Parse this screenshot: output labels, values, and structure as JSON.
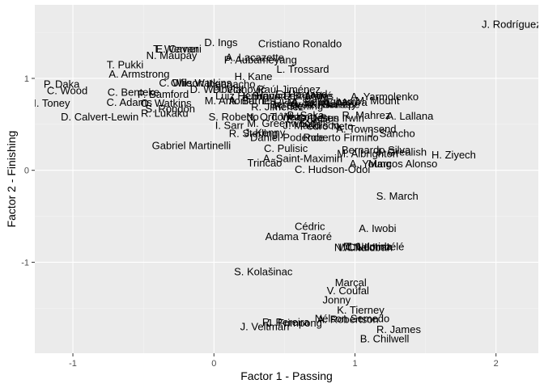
{
  "chart_data": {
    "type": "scatter",
    "xlabel": "Factor 1 - Passing",
    "ylabel": "Factor 2 - Finishing",
    "xlim": [
      -1.27,
      2.3
    ],
    "ylim": [
      -1.99,
      1.8
    ],
    "x_ticks": [
      -1,
      0,
      1,
      2
    ],
    "x_tick_labels": [
      "-1",
      "0",
      "1",
      "2"
    ],
    "y_ticks": [
      -1,
      0,
      1
    ],
    "y_tick_labels": [
      "-1",
      "0",
      "1"
    ],
    "grid": true,
    "labels_only": true,
    "points": [
      {
        "label": "J. Rodríguez",
        "x": 2.11,
        "y": 1.59
      },
      {
        "label": "D. Ings",
        "x": 0.05,
        "y": 1.39
      },
      {
        "label": "E. Cavani",
        "x": -0.25,
        "y": 1.32
      },
      {
        "label": "T. Werner",
        "x": -0.27,
        "y": 1.32
      },
      {
        "label": "N. Maupay",
        "x": -0.3,
        "y": 1.25
      },
      {
        "label": "Cristiano Ronaldo",
        "x": 0.61,
        "y": 1.38
      },
      {
        "label": "A. Lacazette",
        "x": 0.29,
        "y": 1.23
      },
      {
        "label": "P. Aubameyang",
        "x": 0.33,
        "y": 1.2
      },
      {
        "label": "L. Trossard",
        "x": 0.63,
        "y": 1.1
      },
      {
        "label": "T. Pukki",
        "x": -0.63,
        "y": 1.15
      },
      {
        "label": "A. Armstrong",
        "x": -0.53,
        "y": 1.05
      },
      {
        "label": "H. Kane",
        "x": 0.28,
        "y": 1.02
      },
      {
        "label": "P. Daka",
        "x": -1.08,
        "y": 0.94
      },
      {
        "label": "C. Wood",
        "x": -1.04,
        "y": 0.87
      },
      {
        "label": "C. Wilson",
        "x": -0.23,
        "y": 0.95
      },
      {
        "label": "Ollie Watkins",
        "x": -0.09,
        "y": 0.95
      },
      {
        "label": "Iheanacho",
        "x": 0.12,
        "y": 0.94
      },
      {
        "label": "D. Welbeck",
        "x": 0.02,
        "y": 0.88
      },
      {
        "label": "D. Vlahović",
        "x": 0.18,
        "y": 0.88
      },
      {
        "label": "Raúl Jiménez",
        "x": 0.53,
        "y": 0.88
      },
      {
        "label": "C. Benteke",
        "x": -0.57,
        "y": 0.85
      },
      {
        "label": "P. Bamford",
        "x": -0.36,
        "y": 0.83
      },
      {
        "label": "Luiz Henrique",
        "x": 0.24,
        "y": 0.81
      },
      {
        "label": "K. Havertz",
        "x": 0.38,
        "y": 0.81
      },
      {
        "label": "Bruno Fernandes",
        "x": 0.56,
        "y": 0.81
      },
      {
        "label": "E. Haaland",
        "x": 0.62,
        "y": 0.83
      },
      {
        "label": "S. Mané",
        "x": 0.7,
        "y": 0.81
      },
      {
        "label": "A. Yarmolenko",
        "x": 1.21,
        "y": 0.8
      },
      {
        "label": "M. Mount",
        "x": 1.16,
        "y": 0.76
      },
      {
        "label": "I. Toney",
        "x": -1.15,
        "y": 0.73
      },
      {
        "label": "C. Adams",
        "x": -0.6,
        "y": 0.74
      },
      {
        "label": "O. Watkins",
        "x": -0.34,
        "y": 0.73
      },
      {
        "label": "M. Antonio",
        "x": 0.11,
        "y": 0.76
      },
      {
        "label": "A. Barnes",
        "x": 0.27,
        "y": 0.76
      },
      {
        "label": "L. Díaz",
        "x": 0.46,
        "y": 0.76
      },
      {
        "label": "A. Bellingham",
        "x": 0.78,
        "y": 0.75
      },
      {
        "label": "M. Salah",
        "x": 0.67,
        "y": 0.74
      },
      {
        "label": "Bernardo",
        "x": 0.55,
        "y": 0.72
      },
      {
        "label": "K. Sarr",
        "x": 0.8,
        "y": 0.72
      },
      {
        "label": "A. Ramsey",
        "x": 0.83,
        "y": 0.72
      },
      {
        "label": "N. Pépé",
        "x": 0.9,
        "y": 0.72
      },
      {
        "label": "R. Sterling",
        "x": 0.6,
        "y": 0.7
      },
      {
        "label": "R. Jiménez",
        "x": 0.45,
        "y": 0.69
      },
      {
        "label": "L. Moura",
        "x": 0.94,
        "y": 0.74
      },
      {
        "label": "S. Rondón",
        "x": -0.31,
        "y": 0.67
      },
      {
        "label": "R. Lukaku",
        "x": -0.35,
        "y": 0.62
      },
      {
        "label": "D. Calvert-Lewin",
        "x": -0.81,
        "y": 0.58
      },
      {
        "label": "S. Roberto",
        "x": 0.14,
        "y": 0.58
      },
      {
        "label": "R. Mahrez",
        "x": 1.08,
        "y": 0.6
      },
      {
        "label": "A. Lallana",
        "x": 1.39,
        "y": 0.59
      },
      {
        "label": "N. Ordóñez",
        "x": 0.42,
        "y": 0.58
      },
      {
        "label": "T. Walcott",
        "x": 0.56,
        "y": 0.58
      },
      {
        "label": "B. Saka",
        "x": 0.65,
        "y": 0.6
      },
      {
        "label": "G. Jesus",
        "x": 0.74,
        "y": 0.57
      },
      {
        "label": "Ben Irwin",
        "x": 0.91,
        "y": 0.57
      },
      {
        "label": "C. Pulišić",
        "x": 0.67,
        "y": 0.55
      },
      {
        "label": "I. Sarr",
        "x": 0.11,
        "y": 0.49
      },
      {
        "label": "M. Greenwood",
        "x": 0.48,
        "y": 0.51
      },
      {
        "label": "J. Maddison",
        "x": 0.69,
        "y": 0.49
      },
      {
        "label": "Pedro Neto",
        "x": 0.8,
        "y": 0.48
      },
      {
        "label": "A. Townsend",
        "x": 1.08,
        "y": 0.45
      },
      {
        "label": "J. Sancho",
        "x": 1.26,
        "y": 0.4
      },
      {
        "label": "R. Sterling",
        "x": 0.28,
        "y": 0.4
      },
      {
        "label": "J. Kenny",
        "x": 0.36,
        "y": 0.41
      },
      {
        "label": "Daniel Podence",
        "x": 0.52,
        "y": 0.36
      },
      {
        "label": "Roberto Firmino",
        "x": 0.9,
        "y": 0.36
      },
      {
        "label": "Gabriel Martinelli",
        "x": -0.16,
        "y": 0.27
      },
      {
        "label": "C. Pulisic",
        "x": 0.51,
        "y": 0.24
      },
      {
        "label": "Bernardo Silva",
        "x": 1.15,
        "y": 0.22
      },
      {
        "label": "J. Grealish",
        "x": 1.33,
        "y": 0.2
      },
      {
        "label": "H. Ziyech",
        "x": 1.7,
        "y": 0.17
      },
      {
        "label": "M. Albrighton",
        "x": 1.09,
        "y": 0.18
      },
      {
        "label": "A. Saint-Maximin",
        "x": 0.63,
        "y": 0.13
      },
      {
        "label": "Trincão",
        "x": 0.36,
        "y": 0.08
      },
      {
        "label": "A. Young",
        "x": 1.11,
        "y": 0.07
      },
      {
        "label": "Marcos Alonso",
        "x": 1.34,
        "y": 0.07
      },
      {
        "label": "C. Hudson-Odoi",
        "x": 0.84,
        "y": 0.01
      },
      {
        "label": "S. March",
        "x": 1.3,
        "y": -0.28
      },
      {
        "label": "Cédric",
        "x": 0.68,
        "y": -0.61
      },
      {
        "label": "A. Iwobi",
        "x": 1.16,
        "y": -0.63
      },
      {
        "label": "Adama Traoré",
        "x": 0.6,
        "y": -0.72
      },
      {
        "label": "M. Lemina",
        "x": 1.09,
        "y": -0.83
      },
      {
        "label": "T. Ndombélé",
        "x": 1.14,
        "y": -0.83
      },
      {
        "label": "W. Ndidi",
        "x": 1.02,
        "y": -0.84
      },
      {
        "label": "N. Chalobah",
        "x": 1.06,
        "y": -0.84
      },
      {
        "label": "S. Kolašinac",
        "x": 0.35,
        "y": -1.1
      },
      {
        "label": "Marçal",
        "x": 0.97,
        "y": -1.22
      },
      {
        "label": "V. Coufal",
        "x": 0.95,
        "y": -1.31
      },
      {
        "label": "Jonny",
        "x": 0.87,
        "y": -1.41
      },
      {
        "label": "K. Tierney",
        "x": 1.04,
        "y": -1.52
      },
      {
        "label": "Nélson Semedo",
        "x": 0.98,
        "y": -1.61
      },
      {
        "label": "A. Robertson",
        "x": 0.95,
        "y": -1.62
      },
      {
        "label": "R. Pereira",
        "x": 0.51,
        "y": -1.65
      },
      {
        "label": "J. Frimpong",
        "x": 0.57,
        "y": -1.66
      },
      {
        "label": "J. Veltman",
        "x": 0.36,
        "y": -1.7
      },
      {
        "label": "R. James",
        "x": 1.31,
        "y": -1.73
      },
      {
        "label": "B. Chilwell",
        "x": 1.21,
        "y": -1.83
      }
    ]
  }
}
